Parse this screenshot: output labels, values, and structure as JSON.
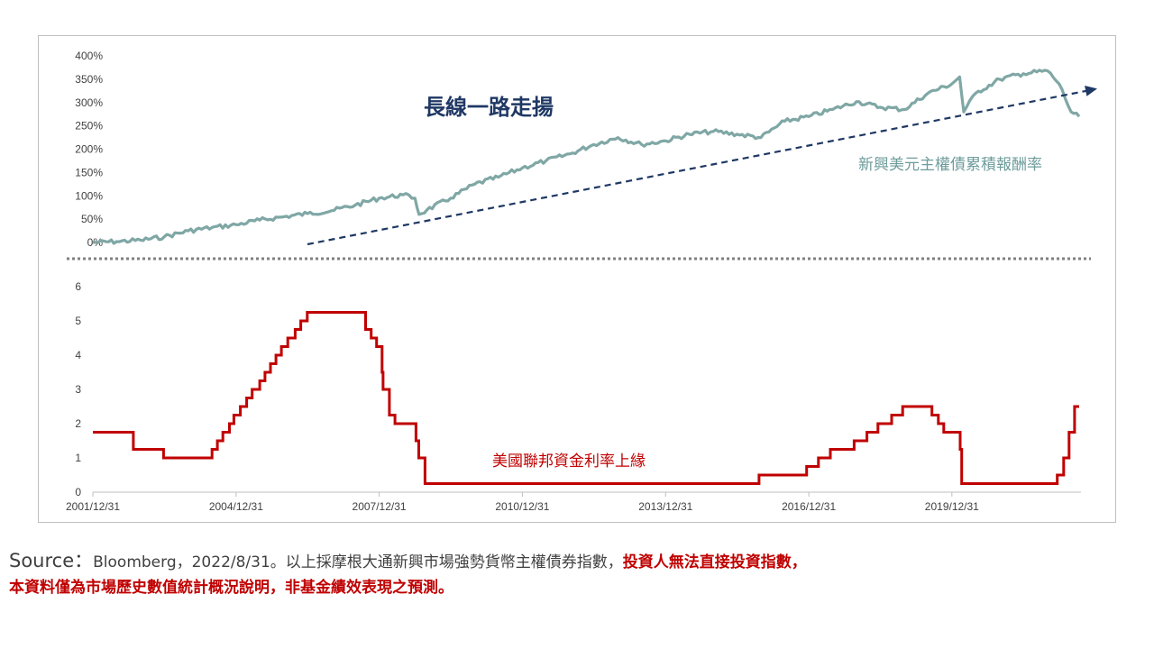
{
  "chart_data": [
    {
      "type": "line",
      "title": "長線一路走揚",
      "series_label": "新興美元主權債累積報酬率",
      "series_color": "#7fa7a5",
      "trend_color": "#1f3864",
      "ylim": [
        0,
        400
      ],
      "y_ticks": [
        "400%",
        "350%",
        "300%",
        "250%",
        "200%",
        "150%",
        "100%",
        "50%",
        "0%"
      ],
      "y_tick_values": [
        400,
        350,
        300,
        250,
        200,
        150,
        100,
        50,
        0
      ],
      "x": [
        "2001/12/31",
        "2002/6/30",
        "2002/12/31",
        "2003/6/30",
        "2003/12/31",
        "2004/6/30",
        "2004/12/31",
        "2005/6/30",
        "2005/12/31",
        "2006/6/30",
        "2006/12/31",
        "2007/6/30",
        "2007/12/31",
        "2008/6/30",
        "2008/9/30",
        "2008/10/31",
        "2008/12/31",
        "2009/6/30",
        "2009/12/31",
        "2010/6/30",
        "2010/12/31",
        "2011/6/30",
        "2011/12/31",
        "2012/6/30",
        "2012/12/31",
        "2013/6/30",
        "2013/12/31",
        "2014/6/30",
        "2014/12/31",
        "2015/6/30",
        "2015/12/31",
        "2016/6/30",
        "2016/12/31",
        "2017/6/30",
        "2017/12/31",
        "2018/6/30",
        "2018/12/31",
        "2019/6/30",
        "2019/12/31",
        "2020/2/28",
        "2020/3/31",
        "2020/6/30",
        "2020/12/31",
        "2021/6/30",
        "2021/12/31",
        "2022/3/31",
        "2022/6/30",
        "2022/8/31"
      ],
      "values": [
        0,
        2,
        5,
        12,
        25,
        32,
        38,
        48,
        55,
        62,
        68,
        80,
        95,
        102,
        95,
        60,
        70,
        95,
        125,
        140,
        160,
        175,
        190,
        210,
        225,
        210,
        218,
        232,
        238,
        232,
        225,
        260,
        270,
        285,
        302,
        290,
        285,
        320,
        340,
        355,
        280,
        320,
        350,
        362,
        368,
        340,
        280,
        270
      ],
      "trend_line": {
        "x": [
          "2006/6/30",
          "2022/8/31"
        ],
        "values": [
          0,
          320
        ]
      }
    },
    {
      "type": "line",
      "series_label": "美國聯邦資金利率上緣",
      "series_color": "#c00000",
      "ylim": [
        0,
        6
      ],
      "y_ticks": [
        "6",
        "5",
        "4",
        "3",
        "2",
        "1",
        "0"
      ],
      "y_tick_values": [
        6,
        5,
        4,
        3,
        2,
        1,
        0
      ],
      "x_ticks": [
        "2001/12/31",
        "2004/12/31",
        "2007/12/31",
        "2010/12/31",
        "2013/12/31",
        "2016/12/31",
        "2019/12/31"
      ],
      "x": [
        "2001/12/31",
        "2002/11/6",
        "2003/6/25",
        "2004/6/30",
        "2004/8/10",
        "2004/9/21",
        "2004/11/10",
        "2004/12/14",
        "2005/2/2",
        "2005/3/22",
        "2005/5/3",
        "2005/6/30",
        "2005/8/9",
        "2005/9/20",
        "2005/11/1",
        "2005/12/13",
        "2006/1/31",
        "2006/3/28",
        "2006/5/10",
        "2006/6/29",
        "2007/9/18",
        "2007/10/31",
        "2007/12/11",
        "2008/1/22",
        "2008/1/30",
        "2008/3/18",
        "2008/4/30",
        "2008/10/8",
        "2008/10/29",
        "2008/12/16",
        "2015/12/16",
        "2016/12/14",
        "2017/3/15",
        "2017/6/14",
        "2017/12/13",
        "2018/3/21",
        "2018/6/13",
        "2018/9/26",
        "2018/12/19",
        "2019/7/31",
        "2019/9/18",
        "2019/10/30",
        "2020/3/3",
        "2020/3/15",
        "2022/3/16",
        "2022/5/4",
        "2022/6/15",
        "2022/7/27",
        "2022/8/31"
      ],
      "values": [
        1.75,
        1.25,
        1.0,
        1.25,
        1.5,
        1.75,
        2.0,
        2.25,
        2.5,
        2.75,
        3.0,
        3.25,
        3.5,
        3.75,
        4.0,
        4.25,
        4.5,
        4.75,
        5.0,
        5.25,
        4.75,
        4.5,
        4.25,
        3.5,
        3.0,
        2.25,
        2.0,
        1.5,
        1.0,
        0.25,
        0.5,
        0.75,
        1.0,
        1.25,
        1.5,
        1.75,
        2.0,
        2.25,
        2.5,
        2.25,
        2.0,
        1.75,
        1.25,
        0.25,
        0.5,
        1.0,
        1.75,
        2.5,
        2.5
      ]
    }
  ],
  "footnote": {
    "source_label": "Source：",
    "source_text": "Bloomberg，2022/8/31。以上採摩根大通新興市場強勢貨幣主權債券指數，",
    "warning_1": "投資人無法直接投資指數，",
    "warning_2": "本資料僅為市場歷史數值統計概況說明，非基金績效表現之預測。"
  }
}
